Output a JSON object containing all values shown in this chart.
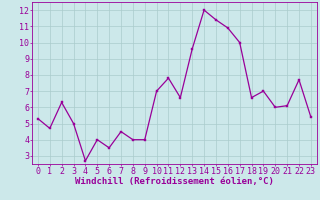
{
  "x": [
    0,
    1,
    2,
    3,
    4,
    5,
    6,
    7,
    8,
    9,
    10,
    11,
    12,
    13,
    14,
    15,
    16,
    17,
    18,
    19,
    20,
    21,
    22,
    23
  ],
  "y": [
    5.3,
    4.7,
    6.3,
    5.0,
    2.7,
    4.0,
    3.5,
    4.5,
    4.0,
    4.0,
    7.0,
    7.8,
    6.6,
    9.6,
    12.0,
    11.4,
    10.9,
    10.0,
    6.6,
    7.0,
    6.0,
    6.1,
    7.7,
    5.4
  ],
  "line_color": "#990099",
  "marker_color": "#990099",
  "bg_color": "#cce8ea",
  "grid_color": "#aacccc",
  "xlabel": "Windchill (Refroidissement éolien,°C)",
  "xlabel_color": "#990099",
  "xlabel_fontsize": 6.5,
  "tick_color": "#990099",
  "tick_fontsize": 6,
  "ylim": [
    2.5,
    12.5
  ],
  "xlim": [
    -0.5,
    23.5
  ],
  "yticks": [
    3,
    4,
    5,
    6,
    7,
    8,
    9,
    10,
    11,
    12
  ],
  "xticks": [
    0,
    1,
    2,
    3,
    4,
    5,
    6,
    7,
    8,
    9,
    10,
    11,
    12,
    13,
    14,
    15,
    16,
    17,
    18,
    19,
    20,
    21,
    22,
    23
  ]
}
